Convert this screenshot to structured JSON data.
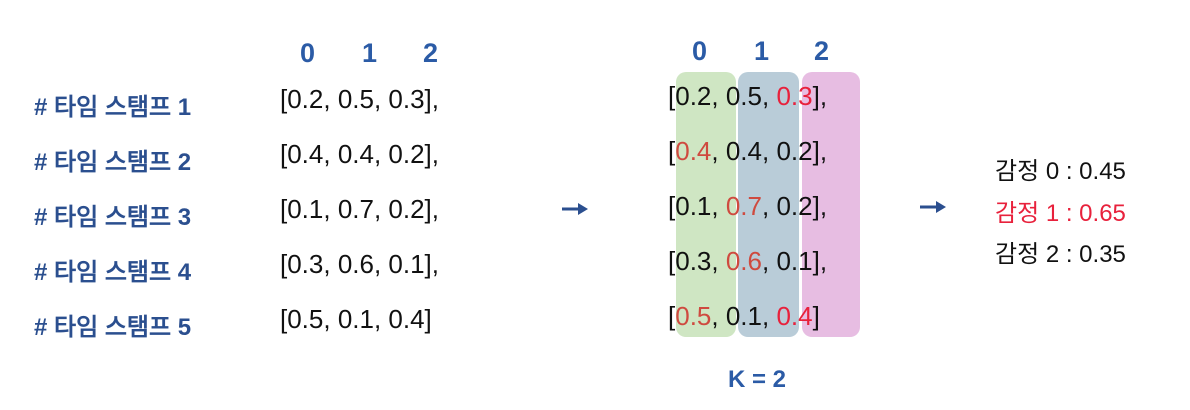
{
  "left": {
    "col_headers": [
      "0",
      "1",
      "2"
    ],
    "labels": [
      "# 타임 스탬프 1",
      "# 타임 스탬프 2",
      "# 타임 스탬프 3",
      "# 타임 스탬프 4",
      "# 타임 스탬프 5"
    ],
    "rows": [
      "[0.2, 0.5, 0.3],",
      "[0.4, 0.4, 0.2],",
      "[0.1, 0.7, 0.2],",
      "[0.3, 0.6, 0.1],",
      "[0.5, 0.1, 0.4]"
    ]
  },
  "middle": {
    "col_headers": [
      "0",
      "1",
      "2"
    ],
    "rows": [
      {
        "open": "[",
        "v0": "0.2",
        "s1": ", ",
        "v1": "0.5",
        "s2": ", ",
        "v2": "0.3",
        "close": "],"
      },
      {
        "open": "[",
        "v0": "0.4",
        "s1": ", ",
        "v1": "0.4",
        "s2": ", ",
        "v2": "0.2",
        "close": "],"
      },
      {
        "open": "[",
        "v0": "0.1",
        "s1": ", ",
        "v1": "0.7",
        "s2": ", ",
        "v2": "0.2",
        "close": "],"
      },
      {
        "open": "[",
        "v0": "0.3",
        "s1": ", ",
        "v1": "0.6",
        "s2": ", ",
        "v2": "0.1",
        "close": "],"
      },
      {
        "open": "[",
        "v0": "0.5",
        "s1": ", ",
        "v1": "0.1",
        "s2": ", ",
        "v2": "0.4",
        "close": "]"
      }
    ],
    "k_label": "K = 2"
  },
  "right": {
    "emotions": [
      "감정 0 : 0.45",
      "감정 1  : 0.65",
      "감정 2 : 0.35"
    ]
  },
  "colors": {
    "col0": "#cfe6c3",
    "col1": "#b9ccd8",
    "col2": "#e7bde2",
    "header_blue": "#2b5ba6",
    "highlight_orange": "#cf4a3f",
    "highlight_red": "#e8213c"
  }
}
